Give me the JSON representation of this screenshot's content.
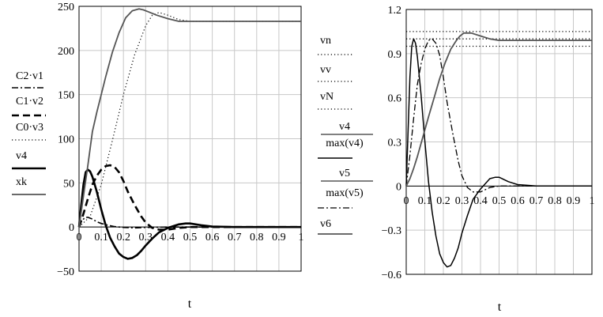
{
  "chart_data": [
    {
      "type": "line",
      "xlabel": "t",
      "xlim": [
        0,
        1
      ],
      "ylim": [
        -50,
        250
      ],
      "x_ticks": [
        "0",
        "0.1",
        "0.2",
        "0.3",
        "0.4",
        "0.5",
        "0.6",
        "0.7",
        "0.8",
        "0.9",
        "1"
      ],
      "y_ticks": [
        "250",
        "200",
        "150",
        "100",
        "50",
        "0",
        "−50"
      ],
      "y_tick_values": [
        250,
        200,
        150,
        100,
        50,
        0,
        -50
      ],
      "grid": true,
      "legend_position": "left",
      "series": [
        {
          "name": "C2·v1",
          "style": "dashdot",
          "width": 1.6,
          "color": "#000000",
          "x": [
            0,
            0.01,
            0.02,
            0.03,
            0.04,
            0.05,
            0.06,
            0.08,
            0.1,
            0.13,
            0.16,
            0.2,
            0.25,
            0.3,
            0.4,
            0.5,
            0.6,
            0.8,
            1.0
          ],
          "y": [
            0,
            6,
            9,
            11,
            11,
            10,
            9,
            6,
            4,
            2,
            0.5,
            -0.5,
            -1,
            -0.5,
            0,
            0,
            0,
            0,
            0
          ]
        },
        {
          "name": "C1·v2",
          "style": "dashed",
          "width": 2.6,
          "color": "#000000",
          "x": [
            0,
            0.02,
            0.04,
            0.06,
            0.08,
            0.1,
            0.12,
            0.14,
            0.16,
            0.18,
            0.2,
            0.22,
            0.25,
            0.28,
            0.3,
            0.33,
            0.36,
            0.4,
            0.45,
            0.5,
            0.6,
            1.0
          ],
          "y": [
            0,
            15,
            32,
            48,
            58,
            65,
            69,
            70,
            68,
            62,
            52,
            40,
            25,
            12,
            5,
            -1,
            -3,
            -3,
            -1,
            0,
            0,
            0
          ]
        },
        {
          "name": "C0·v3",
          "style": "dotted",
          "width": 1.2,
          "color": "#000000",
          "x": [
            0,
            0.05,
            0.1,
            0.15,
            0.2,
            0.25,
            0.3,
            0.33,
            0.36,
            0.4,
            0.45,
            0.5,
            0.55,
            1.0
          ],
          "y": [
            0,
            12,
            48,
            98,
            150,
            195,
            228,
            240,
            243,
            240,
            235,
            233,
            233,
            233
          ]
        },
        {
          "name": "v4",
          "style": "solid",
          "width": 2.6,
          "color": "#000000",
          "x": [
            0,
            0.01,
            0.02,
            0.03,
            0.04,
            0.05,
            0.06,
            0.08,
            0.1,
            0.12,
            0.14,
            0.16,
            0.18,
            0.2,
            0.22,
            0.24,
            0.26,
            0.28,
            0.3,
            0.33,
            0.36,
            0.4,
            0.45,
            0.48,
            0.5,
            0.55,
            0.6,
            0.7,
            0.8,
            1.0
          ],
          "y": [
            0,
            25,
            48,
            62,
            65,
            63,
            57,
            40,
            20,
            2,
            -12,
            -22,
            -30,
            -34,
            -36,
            -35,
            -32,
            -27,
            -21,
            -13,
            -6,
            -1,
            3,
            4,
            4,
            2,
            0.5,
            0,
            0,
            0
          ]
        },
        {
          "name": "xk",
          "style": "solid",
          "width": 1.8,
          "color": "#555555",
          "x": [
            0,
            0.02,
            0.04,
            0.06,
            0.08,
            0.1,
            0.12,
            0.15,
            0.18,
            0.21,
            0.24,
            0.27,
            0.29,
            0.31,
            0.35,
            0.4,
            0.45,
            0.5,
            0.55,
            0.6,
            1.0
          ],
          "y": [
            0,
            35,
            70,
            108,
            130,
            150,
            170,
            198,
            220,
            237,
            245,
            247,
            246,
            244,
            240,
            236,
            233,
            233,
            233,
            233,
            233
          ]
        }
      ]
    },
    {
      "type": "line",
      "xlabel": "t",
      "xlim": [
        0,
        1
      ],
      "ylim": [
        -0.6,
        1.2
      ],
      "x_ticks": [
        "0",
        "0.1",
        "0.2",
        "0.3",
        "0.4",
        "0.5",
        "0.6",
        "0.7",
        "0.8",
        "0.9",
        "1"
      ],
      "y_ticks": [
        "1.2",
        "0.9",
        "0.6",
        "0.3",
        "0",
        "−0.3",
        "−0.6"
      ],
      "y_tick_values": [
        1.2,
        0.9,
        0.6,
        0.3,
        0,
        -0.3,
        -0.6
      ],
      "grid": true,
      "legend_position": "left",
      "series": [
        {
          "name": "vn",
          "style": "dotted",
          "width": 1.3,
          "color": "#000000",
          "x": [
            0,
            1
          ],
          "y": [
            0.95,
            0.95
          ]
        },
        {
          "name": "vv",
          "style": "dotted",
          "width": 1.3,
          "color": "#000000",
          "x": [
            0,
            1
          ],
          "y": [
            1.05,
            1.05
          ]
        },
        {
          "name": "vN",
          "style": "dotted",
          "width": 1.3,
          "color": "#000000",
          "x": [
            0,
            1
          ],
          "y": [
            1.0,
            1.0
          ]
        },
        {
          "name": "v4",
          "name_denominator": "max(v4)",
          "style": "solid",
          "width": 1.5,
          "color": "#000000",
          "x": [
            0,
            0.01,
            0.02,
            0.03,
            0.04,
            0.05,
            0.06,
            0.08,
            0.1,
            0.12,
            0.14,
            0.16,
            0.18,
            0.2,
            0.22,
            0.24,
            0.26,
            0.28,
            0.3,
            0.33,
            0.36,
            0.4,
            0.45,
            0.48,
            0.5,
            0.55,
            0.6,
            0.7,
            0.8,
            1.0
          ],
          "y": [
            0,
            0.38,
            0.74,
            0.95,
            1.0,
            0.97,
            0.88,
            0.62,
            0.31,
            0.03,
            -0.18,
            -0.34,
            -0.46,
            -0.52,
            -0.55,
            -0.54,
            -0.49,
            -0.42,
            -0.32,
            -0.2,
            -0.09,
            -0.02,
            0.05,
            0.06,
            0.06,
            0.03,
            0.01,
            0,
            0,
            0
          ]
        },
        {
          "name": "v5",
          "name_denominator": "max(v5)",
          "style": "dashdot",
          "width": 1.3,
          "color": "#000000",
          "x": [
            0,
            0.02,
            0.04,
            0.06,
            0.08,
            0.1,
            0.12,
            0.14,
            0.16,
            0.18,
            0.2,
            0.22,
            0.25,
            0.28,
            0.3,
            0.33,
            0.36,
            0.4,
            0.45,
            0.5,
            0.6,
            1.0
          ],
          "y": [
            0,
            0.21,
            0.46,
            0.69,
            0.83,
            0.93,
            0.99,
            1.0,
            0.97,
            0.89,
            0.74,
            0.57,
            0.36,
            0.17,
            0.07,
            -0.01,
            -0.04,
            -0.04,
            -0.01,
            0,
            0,
            0
          ]
        },
        {
          "name": "v6",
          "style": "solid",
          "width": 1.8,
          "color": "#555555",
          "x": [
            0,
            0.02,
            0.04,
            0.06,
            0.08,
            0.1,
            0.12,
            0.15,
            0.18,
            0.21,
            0.24,
            0.27,
            0.29,
            0.31,
            0.35,
            0.4,
            0.45,
            0.5,
            0.55,
            0.6,
            1.0
          ],
          "y": [
            0,
            0.05,
            0.12,
            0.2,
            0.29,
            0.38,
            0.47,
            0.6,
            0.73,
            0.84,
            0.93,
            0.99,
            1.02,
            1.04,
            1.04,
            1.02,
            1.0,
            0.99,
            0.99,
            0.99,
            0.99
          ]
        }
      ]
    }
  ]
}
